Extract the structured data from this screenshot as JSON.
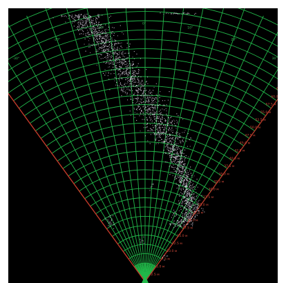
{
  "sonar": {
    "colors": {
      "background": "#000000",
      "grid": "#22b84a",
      "edge_left": "#c23a2a",
      "edge_right": "#b23a28",
      "range_label": "#d24a3a",
      "angle_label": "#3ac25a",
      "points": "#d8d0e0"
    },
    "range_labels": [
      "2.5 м",
      "5.0 м",
      "7.5 м",
      "10.0 м",
      "12.5 м",
      "15.0 м",
      "17.5 м",
      "20.0 м",
      "22.5 м",
      "25.0 м",
      "27.5 м",
      "30.0 м",
      "32.5 м",
      "35.0 м",
      "37.5 м",
      "40.0 м",
      "42.5 м",
      "45.0 м",
      "47.5 м",
      "50.0 м",
      "52.5 м",
      "55.0 м",
      "57.5 м",
      "60.0 м",
      "62.5 м",
      "65.0 м",
      "67.5 м",
      "70.0 м",
      "72.5"
    ],
    "angle_labels": [
      "-30°",
      "-20°",
      "-10°",
      "0°",
      "10°",
      "20°",
      "30°"
    ]
  }
}
